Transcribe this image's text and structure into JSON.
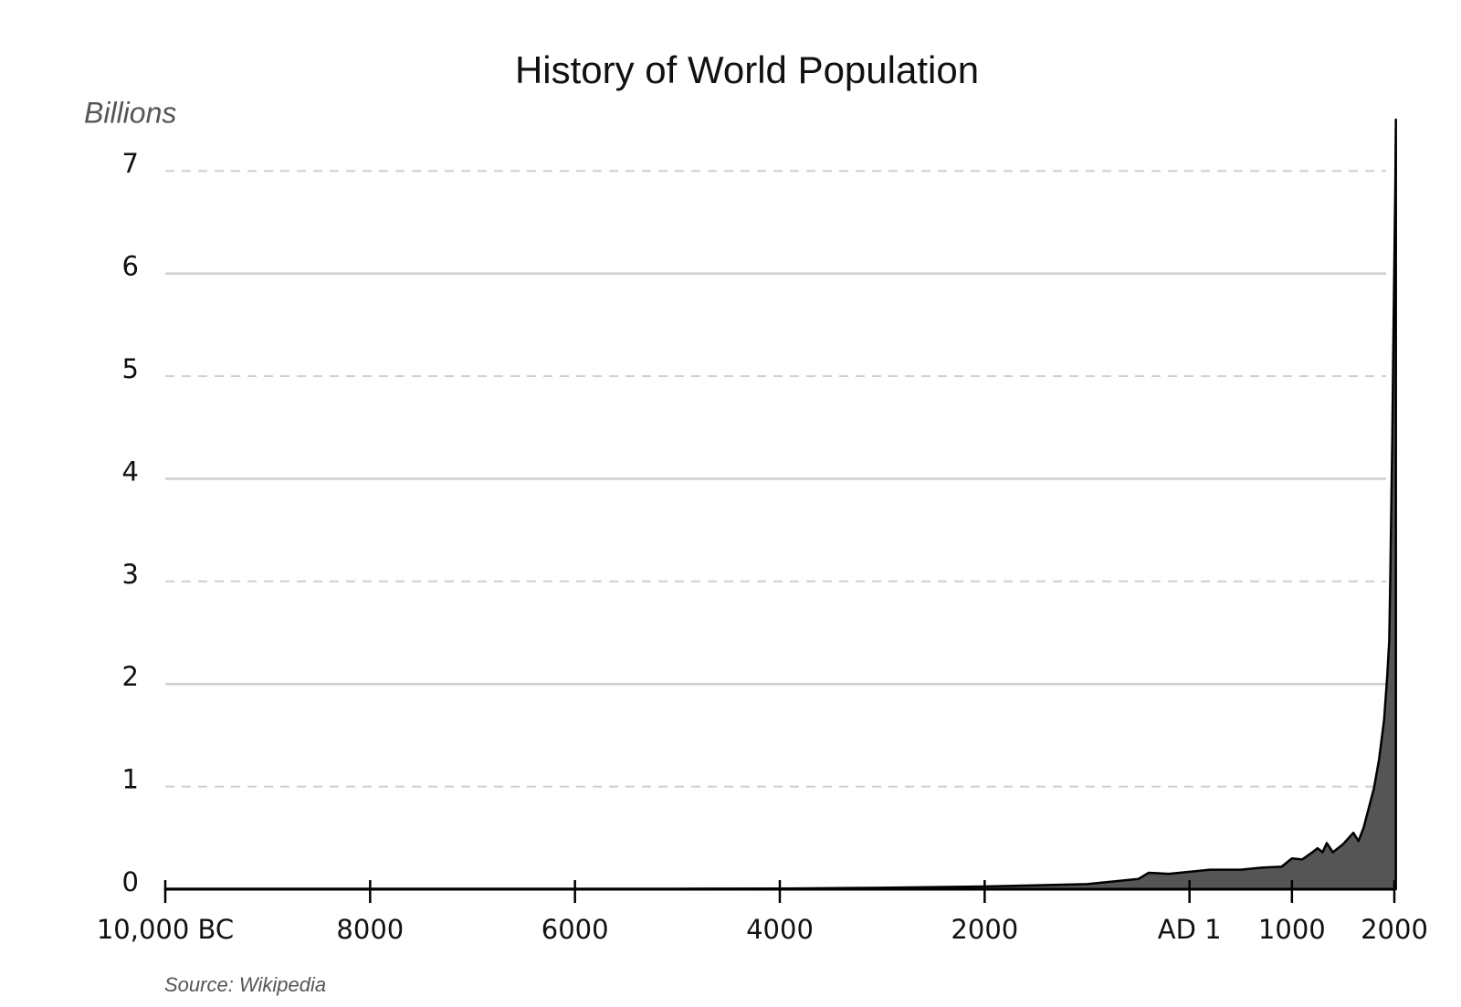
{
  "chart_data": {
    "type": "area",
    "title": "History of World Population",
    "y_label": "Billions",
    "source": "Source: Wikipedia",
    "x": [
      -10000,
      -8000,
      -6000,
      -5000,
      -4000,
      -3000,
      -2000,
      -1000,
      -500,
      -400,
      -200,
      0,
      200,
      500,
      700,
      900,
      1000,
      1100,
      1200,
      1250,
      1300,
      1340,
      1400,
      1500,
      1600,
      1650,
      1700,
      1800,
      1850,
      1900,
      1930,
      1950,
      1960,
      1970,
      1980,
      1990,
      2000,
      2010,
      2015
    ],
    "values": [
      0.004,
      0.005,
      0.005,
      0.005,
      0.007,
      0.014,
      0.027,
      0.05,
      0.1,
      0.16,
      0.15,
      0.17,
      0.19,
      0.19,
      0.21,
      0.22,
      0.3,
      0.29,
      0.36,
      0.4,
      0.36,
      0.45,
      0.36,
      0.44,
      0.55,
      0.47,
      0.6,
      0.98,
      1.26,
      1.65,
      2.07,
      2.42,
      3.0,
      3.7,
      4.4,
      5.3,
      6.1,
      6.9,
      7.5
    ],
    "color": "#555555",
    "xlim": [
      -10000,
      2000
    ],
    "xticks": [
      {
        "value": -10000,
        "label": "10,000 BC"
      },
      {
        "value": -8000,
        "label": "8000"
      },
      {
        "value": -6000,
        "label": "6000"
      },
      {
        "value": -4000,
        "label": "4000"
      },
      {
        "value": -2000,
        "label": "2000"
      },
      {
        "value": 0,
        "label": "AD 1"
      },
      1000,
      2000
    ],
    "ylim": [
      0,
      7.5
    ],
    "yticks": [
      0,
      1,
      2,
      3,
      4,
      5,
      6,
      7
    ],
    "grid": true
  }
}
